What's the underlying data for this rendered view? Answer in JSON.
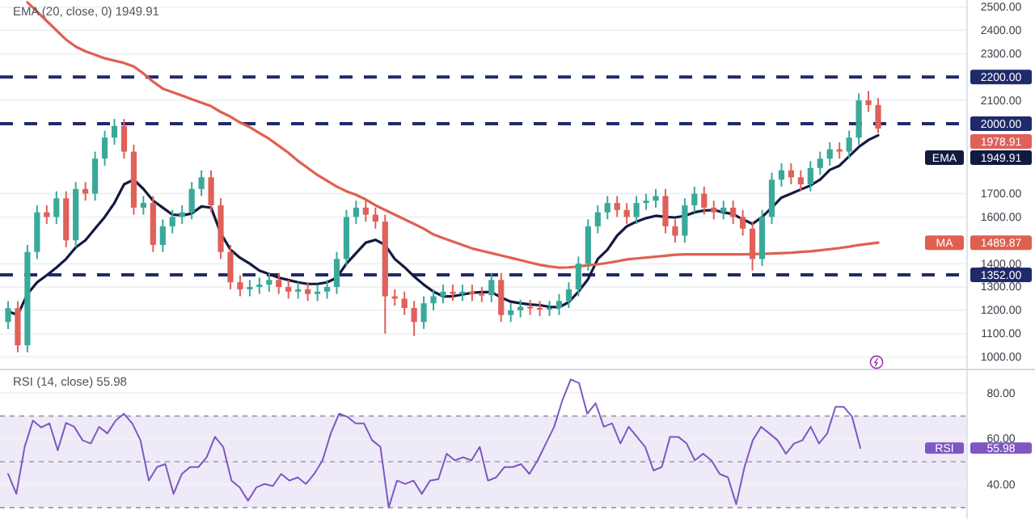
{
  "chart_data": [
    {
      "type": "candlestick",
      "categories": [
        null,
        null,
        null,
        null,
        null,
        null,
        null,
        null,
        null,
        null,
        null,
        null,
        null,
        null,
        null,
        null,
        null,
        null,
        null,
        null,
        null,
        null,
        null,
        null,
        null,
        null,
        null,
        null,
        null,
        null,
        null,
        null,
        null,
        null,
        null,
        null,
        null,
        null,
        null,
        null,
        null,
        null,
        null,
        null,
        null,
        null,
        null,
        null,
        null,
        null,
        null,
        null,
        null,
        null,
        null,
        null,
        null,
        null,
        null,
        null,
        null,
        null,
        null,
        null,
        null,
        null,
        null,
        null,
        null,
        null,
        null,
        null,
        null,
        null,
        null,
        null,
        null,
        null,
        null,
        null,
        null,
        null,
        null,
        null,
        null,
        null,
        null,
        null,
        null,
        null,
        null
      ],
      "ohlc": [
        [
          1150,
          1239,
          1120,
          1209
        ],
        [
          1209,
          1239,
          1020,
          1050
        ],
        [
          1050,
          1480,
          1020,
          1450
        ],
        [
          1450,
          1650,
          1420,
          1620
        ],
        [
          1620,
          1650,
          1570,
          1600
        ],
        [
          1600,
          1710,
          1570,
          1680
        ],
        [
          1680,
          1710,
          1470,
          1500
        ],
        [
          1500,
          1750,
          1470,
          1720
        ],
        [
          1720,
          1750,
          1670,
          1700
        ],
        [
          1700,
          1880,
          1670,
          1850
        ],
        [
          1850,
          1970,
          1820,
          1940
        ],
        [
          1940,
          2020,
          1910,
          1990
        ],
        [
          1990,
          2020,
          1850,
          1880
        ],
        [
          1880,
          1910,
          1610,
          1640
        ],
        [
          1640,
          1690,
          1610,
          1660
        ],
        [
          1660,
          1690,
          1450,
          1480
        ],
        [
          1480,
          1590,
          1450,
          1560
        ],
        [
          1560,
          1630,
          1530,
          1600
        ],
        [
          1600,
          1650,
          1570,
          1620
        ],
        [
          1620,
          1750,
          1590,
          1720
        ],
        [
          1720,
          1800,
          1690,
          1770
        ],
        [
          1770,
          1800,
          1620,
          1650
        ],
        [
          1650,
          1680,
          1420,
          1450
        ],
        [
          1450,
          1480,
          1290,
          1320
        ],
        [
          1320,
          1350,
          1260,
          1290
        ],
        [
          1290,
          1330,
          1260,
          1300
        ],
        [
          1300,
          1340,
          1270,
          1310
        ],
        [
          1310,
          1360,
          1280,
          1330
        ],
        [
          1330,
          1360,
          1270,
          1300
        ],
        [
          1300,
          1330,
          1250,
          1280
        ],
        [
          1280,
          1320,
          1250,
          1290
        ],
        [
          1290,
          1320,
          1240,
          1270
        ],
        [
          1270,
          1310,
          1240,
          1280
        ],
        [
          1280,
          1330,
          1250,
          1300
        ],
        [
          1300,
          1450,
          1270,
          1420
        ],
        [
          1420,
          1630,
          1390,
          1600
        ],
        [
          1600,
          1670,
          1570,
          1640
        ],
        [
          1640,
          1670,
          1580,
          1610
        ],
        [
          1610,
          1640,
          1550,
          1580
        ],
        [
          1580,
          1610,
          1100,
          1260
        ],
        [
          1260,
          1290,
          1220,
          1250
        ],
        [
          1250,
          1280,
          1180,
          1210
        ],
        [
          1210,
          1240,
          1090,
          1150
        ],
        [
          1150,
          1260,
          1120,
          1230
        ],
        [
          1230,
          1290,
          1200,
          1260
        ],
        [
          1260,
          1310,
          1230,
          1280
        ],
        [
          1280,
          1310,
          1240,
          1270
        ],
        [
          1270,
          1310,
          1240,
          1280
        ],
        [
          1280,
          1310,
          1240,
          1270
        ],
        [
          1270,
          1300,
          1235,
          1265
        ],
        [
          1265,
          1360,
          1235,
          1330
        ],
        [
          1330,
          1360,
          1150,
          1180
        ],
        [
          1180,
          1230,
          1150,
          1200
        ],
        [
          1200,
          1245,
          1170,
          1215
        ],
        [
          1215,
          1245,
          1180,
          1210
        ],
        [
          1210,
          1240,
          1175,
          1205
        ],
        [
          1205,
          1240,
          1175,
          1210
        ],
        [
          1210,
          1270,
          1180,
          1240
        ],
        [
          1240,
          1320,
          1210,
          1290
        ],
        [
          1290,
          1430,
          1260,
          1400
        ],
        [
          1400,
          1590,
          1370,
          1560
        ],
        [
          1560,
          1650,
          1530,
          1620
        ],
        [
          1620,
          1690,
          1590,
          1660
        ],
        [
          1660,
          1690,
          1600,
          1630
        ],
        [
          1630,
          1660,
          1570,
          1600
        ],
        [
          1600,
          1690,
          1570,
          1660
        ],
        [
          1660,
          1700,
          1630,
          1670
        ],
        [
          1670,
          1720,
          1640,
          1690
        ],
        [
          1690,
          1720,
          1530,
          1560
        ],
        [
          1560,
          1590,
          1490,
          1520
        ],
        [
          1520,
          1680,
          1490,
          1650
        ],
        [
          1650,
          1730,
          1620,
          1700
        ],
        [
          1700,
          1730,
          1610,
          1640
        ],
        [
          1640,
          1670,
          1590,
          1620
        ],
        [
          1620,
          1670,
          1590,
          1640
        ],
        [
          1640,
          1670,
          1570,
          1600
        ],
        [
          1600,
          1630,
          1520,
          1550
        ],
        [
          1550,
          1580,
          1370,
          1420
        ],
        [
          1420,
          1630,
          1390,
          1600
        ],
        [
          1600,
          1790,
          1570,
          1760
        ],
        [
          1760,
          1830,
          1730,
          1800
        ],
        [
          1800,
          1830,
          1740,
          1770
        ],
        [
          1770,
          1800,
          1710,
          1740
        ],
        [
          1740,
          1840,
          1710,
          1810
        ],
        [
          1810,
          1880,
          1780,
          1850
        ],
        [
          1850,
          1920,
          1820,
          1890
        ],
        [
          1890,
          1920,
          1850,
          1880
        ],
        [
          1880,
          1970,
          1850,
          1940
        ],
        [
          1940,
          2130,
          1910,
          2100
        ],
        [
          2100,
          2140,
          2050,
          2080
        ],
        [
          2080,
          2110,
          1960,
          1978.91
        ]
      ],
      "series": [
        {
          "type": "line",
          "name": "EMA",
          "color": "#131a40",
          "values": [
            1195,
            1180,
            1270,
            1320,
            1350,
            1383,
            1420,
            1470,
            1500,
            1550,
            1600,
            1660,
            1740,
            1760,
            1720,
            1670,
            1640,
            1610,
            1607,
            1615,
            1645,
            1640,
            1530,
            1460,
            1425,
            1400,
            1370,
            1355,
            1340,
            1330,
            1320,
            1313,
            1313,
            1320,
            1340,
            1400,
            1445,
            1490,
            1502,
            1480,
            1420,
            1385,
            1345,
            1310,
            1280,
            1260,
            1260,
            1268,
            1275,
            1278,
            1278,
            1255,
            1237,
            1230,
            1225,
            1222,
            1215,
            1213,
            1235,
            1280,
            1334,
            1420,
            1460,
            1520,
            1560,
            1580,
            1595,
            1605,
            1600,
            1598,
            1605,
            1620,
            1628,
            1630,
            1620,
            1612,
            1590,
            1570,
            1600,
            1640,
            1683,
            1700,
            1718,
            1735,
            1760,
            1802,
            1820,
            1860,
            1900,
            1930,
            1949.91
          ]
        },
        {
          "type": "line",
          "name": "MA",
          "color": "#e0604f",
          "values": [
            null,
            null,
            2520,
            2480,
            2440,
            2400,
            2360,
            2330,
            2310,
            2295,
            2280,
            2270,
            2260,
            2245,
            2215,
            2180,
            2150,
            2135,
            2120,
            2105,
            2090,
            2075,
            2050,
            2030,
            2005,
            1985,
            1960,
            1935,
            1905,
            1875,
            1840,
            1810,
            1780,
            1755,
            1730,
            1710,
            1695,
            1675,
            1650,
            1630,
            1610,
            1590,
            1570,
            1550,
            1525,
            1510,
            1495,
            1480,
            1465,
            1455,
            1445,
            1435,
            1425,
            1415,
            1405,
            1395,
            1388,
            1383,
            1384,
            1388,
            1393,
            1397,
            1403,
            1410,
            1418,
            1422,
            1426,
            1430,
            1434,
            1438,
            1440,
            1440,
            1440,
            1440,
            1440,
            1440,
            1440,
            1441,
            1442,
            1443,
            1445,
            1447,
            1450,
            1453,
            1457,
            1462,
            1467,
            1473,
            1480,
            1485,
            1489.87
          ]
        }
      ],
      "ylim": [
        950,
        2530
      ],
      "yticks": [
        {
          "value": 1000,
          "label": "1000.00"
        },
        {
          "value": 1100,
          "label": "1100.00"
        },
        {
          "value": 1200,
          "label": "1200.00"
        },
        {
          "value": 1300,
          "label": "1300.00"
        },
        {
          "value": 1400,
          "label": "1400.00"
        },
        {
          "value": 1600,
          "label": "1600.00"
        },
        {
          "value": 1700,
          "label": "1700.00"
        },
        {
          "value": 2100,
          "label": "2100.00"
        },
        {
          "value": 2300,
          "label": "2300.00"
        },
        {
          "value": 2400,
          "label": "2400.00"
        },
        {
          "value": 2500,
          "label": "2500.00"
        }
      ],
      "grid": "y",
      "ref_lines": [
        {
          "axis": "y",
          "value": 2200,
          "label": "2200.00",
          "color": "#1f2a6b",
          "line_style": "dashed"
        },
        {
          "axis": "y",
          "value": 2000,
          "label": "2000.00",
          "color": "#1f2a6b",
          "line_style": "dashed"
        },
        {
          "axis": "y",
          "value": 1352,
          "label": "1352.00",
          "color": "#1f2a6b",
          "line_style": "dashed"
        }
      ],
      "annotations": [
        "EMA (20, close, 0)  1949.91",
        "1978.91",
        "1949.91",
        "1489.87"
      ]
    },
    {
      "type": "line",
      "categories": [
        null,
        null,
        null,
        null,
        null,
        null,
        null,
        null,
        null,
        null,
        null,
        null,
        null,
        null,
        null,
        null,
        null,
        null,
        null,
        null,
        null,
        null,
        null,
        null,
        null,
        null,
        null,
        null,
        null,
        null,
        null,
        null,
        null,
        null,
        null,
        null,
        null,
        null,
        null,
        null,
        null,
        null,
        null,
        null,
        null,
        null,
        null,
        null,
        null,
        null,
        null,
        null,
        null,
        null,
        null,
        null,
        null,
        null,
        null,
        null,
        null,
        null,
        null,
        null,
        null,
        null,
        null,
        null,
        null,
        null,
        null,
        null,
        null,
        null,
        null,
        null,
        null,
        null,
        null,
        null,
        null,
        null,
        null,
        null,
        null,
        null,
        null,
        null,
        null,
        null,
        null,
        null,
        null,
        null,
        null,
        null,
        null,
        null,
        null,
        null,
        null,
        null,
        null,
        null
      ],
      "series": [
        {
          "name": "RSI",
          "color": "#7e57c2",
          "values": [
            44.7,
            36,
            56.5,
            68,
            65,
            66.8,
            55,
            67,
            65.3,
            59.4,
            58,
            65.3,
            62.4,
            68,
            71,
            66.8,
            59.4,
            41.8,
            47.7,
            49,
            36,
            44.7,
            47.7,
            47.7,
            52,
            60.9,
            56.5,
            41.8,
            38.8,
            33,
            38.8,
            40.3,
            39.4,
            44.7,
            41.8,
            43.2,
            40.3,
            44.7,
            50.6,
            62.4,
            71,
            69.7,
            66.8,
            66.8,
            59.4,
            56.5,
            30,
            41.8,
            40.3,
            41.8,
            36,
            41.8,
            42.4,
            53.5,
            50.6,
            52,
            50.6,
            56.5,
            41.8,
            43.2,
            47.7,
            47.7,
            49,
            44.7,
            50.6,
            58,
            65.3,
            77,
            86,
            84.4,
            71,
            75.6,
            65.3,
            66.8,
            58,
            65.3,
            60.9,
            56.5,
            46.2,
            47.7,
            60.9,
            60.9,
            58,
            50.6,
            53.5,
            50.6,
            44.7,
            43.2,
            31.5,
            47.7,
            59.4,
            65.3,
            62.4,
            59.4,
            53.5,
            58,
            59.4,
            65.3,
            58,
            62.4,
            74,
            74,
            69.7,
            55.98
          ]
        }
      ],
      "ylim": [
        25,
        90
      ],
      "yticks": [
        {
          "value": 40,
          "label": "40.00"
        },
        {
          "value": 60,
          "label": "60.00"
        },
        {
          "value": 80,
          "label": "80.00"
        }
      ],
      "grid": "y",
      "bands": [
        {
          "axis": "y",
          "from": 30,
          "to": 70,
          "color": "#efeaf8"
        }
      ],
      "ref_lines": [
        {
          "axis": "y",
          "value": 70,
          "label": null,
          "color": "#9a9aa6",
          "line_style": "dashed"
        },
        {
          "axis": "y",
          "value": 50,
          "label": null,
          "color": "#9a9aa6",
          "line_style": "dashed"
        },
        {
          "axis": "y",
          "value": 30,
          "label": null,
          "color": "#9a9aa6",
          "line_style": "dashed"
        }
      ],
      "annotations": [
        "RSI (14, close)  55.98",
        "55.98"
      ]
    }
  ]
}
